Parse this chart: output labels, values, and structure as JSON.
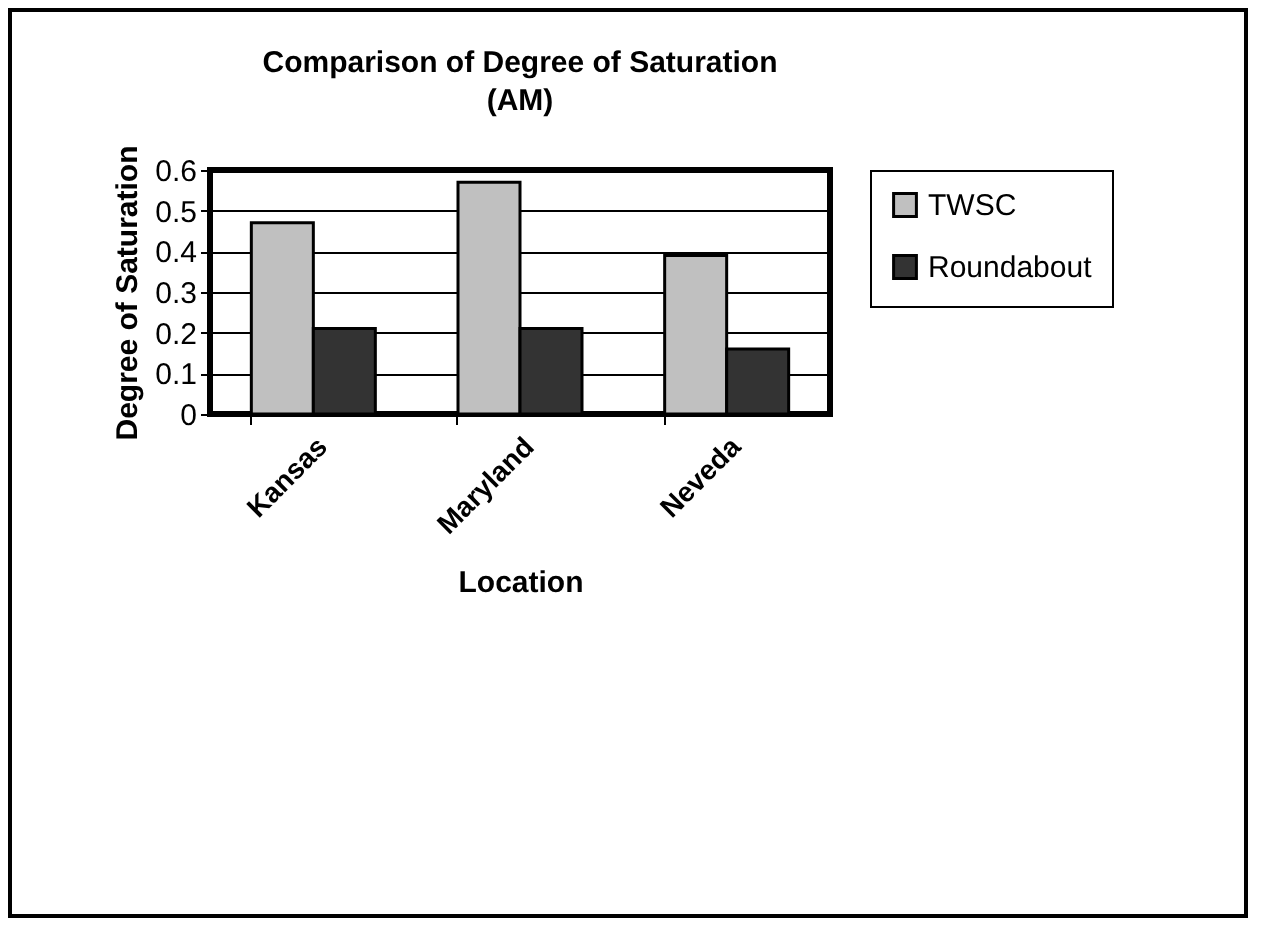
{
  "chart_data": {
    "type": "bar",
    "title": "Comparison of Degree of Saturation",
    "subtitle": "(AM)",
    "xlabel": "Location",
    "ylabel": "Degree of Saturation",
    "categories": [
      "Kansas",
      "Maryland",
      "Neveda"
    ],
    "series": [
      {
        "name": "TWSC",
        "color": "#c0c0c0",
        "values": [
          0.47,
          0.57,
          0.39
        ]
      },
      {
        "name": "Roundabout",
        "color": "#333333",
        "values": [
          0.21,
          0.21,
          0.16
        ]
      }
    ],
    "ylim": [
      0,
      0.6
    ],
    "yticks": [
      0,
      0.1,
      0.2,
      0.3,
      0.4,
      0.5,
      0.6
    ],
    "grid": "y",
    "legend": "right"
  }
}
